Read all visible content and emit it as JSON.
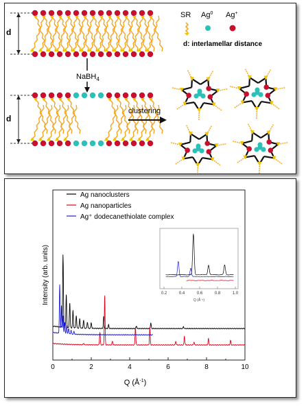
{
  "schematic": {
    "legend": {
      "sr": "SR",
      "ag0": "Ag",
      "ag0_sup": "0",
      "agplus": "Ag",
      "agplus_sup": "+",
      "d_def": "d: interlamellar distance"
    },
    "d_label": "d",
    "reagent": "NaBH",
    "reagent_sub": "4",
    "step": "clustering",
    "colors": {
      "chain": "#f5a623",
      "head": "#f2c400",
      "agplus": "#c8102e",
      "ag0": "#2bc0b8",
      "bond": "#111111"
    }
  },
  "chart_data": [
    {
      "type": "line",
      "xlabel": "Q (Å",
      "xlabel_sup": "-1",
      "xlabel_end": ")",
      "ylabel": "Intensity (arb. units)",
      "xlim": [
        0,
        10
      ],
      "xticks": [
        "0",
        "2",
        "4",
        "6",
        "8",
        "10"
      ],
      "yticks": "none",
      "grid": false,
      "legend_position": "top-center",
      "series": [
        {
          "name": "Ag nanoclusters",
          "color": "#000000",
          "baseline": 0.52,
          "peaks": [
            [
              0.53,
              2.3
            ],
            [
              0.7,
              1.05
            ],
            [
              0.88,
              0.8
            ],
            [
              1.05,
              0.55
            ],
            [
              1.22,
              0.4
            ],
            [
              1.4,
              0.3
            ],
            [
              1.6,
              0.25
            ],
            [
              1.8,
              0.2
            ],
            [
              2.0,
              0.18
            ],
            [
              2.65,
              0.38
            ],
            [
              2.9,
              0.12
            ],
            [
              4.35,
              0.08
            ],
            [
              5.1,
              0.18
            ],
            [
              6.8,
              0.06
            ]
          ]
        },
        {
          "name": "Ag nanoparticles",
          "color": "#e0001b",
          "baseline": 0.0,
          "peaks": [
            [
              1.6,
              0.05
            ],
            [
              2.45,
              0.4
            ],
            [
              2.7,
              1.58
            ],
            [
              3.1,
              0.12
            ],
            [
              4.3,
              0.58
            ],
            [
              5.05,
              0.55
            ],
            [
              6.4,
              0.12
            ],
            [
              6.85,
              0.28
            ],
            [
              7.35,
              0.1
            ],
            [
              8.1,
              0.2
            ],
            [
              9.25,
              0.15
            ]
          ]
        },
        {
          "name": "Ag⁺ dodecanethiolate complex",
          "color": "#1f1fd6",
          "baseline": 0.32,
          "peaks": [
            [
              0.36,
              1.55
            ],
            [
              0.45,
              0.9
            ],
            [
              0.53,
              0.55
            ],
            [
              0.62,
              0.35
            ],
            [
              0.72,
              0.25
            ],
            [
              0.82,
              0.18
            ],
            [
              0.95,
              0.12
            ],
            [
              1.1,
              0.08
            ]
          ]
        }
      ]
    },
    {
      "type": "line",
      "inset": true,
      "xlabel": "Q (Å⁻¹)",
      "xlim": [
        0.2,
        1.0
      ],
      "xticks": [
        "0.2",
        "0.4",
        "0.6",
        "0.8",
        "1.0"
      ],
      "series": [
        {
          "color": "#000000",
          "baseline": 0.3,
          "peaks": [
            [
              0.53,
              2.1
            ],
            [
              0.7,
              0.5
            ],
            [
              0.88,
              0.5
            ]
          ]
        },
        {
          "color": "#e0001b",
          "baseline": 0.0,
          "peaks": []
        },
        {
          "color": "#1f1fd6",
          "baseline": 0.2,
          "peaks": [
            [
              0.36,
              0.8
            ],
            [
              0.5,
              0.45
            ]
          ]
        }
      ]
    }
  ]
}
